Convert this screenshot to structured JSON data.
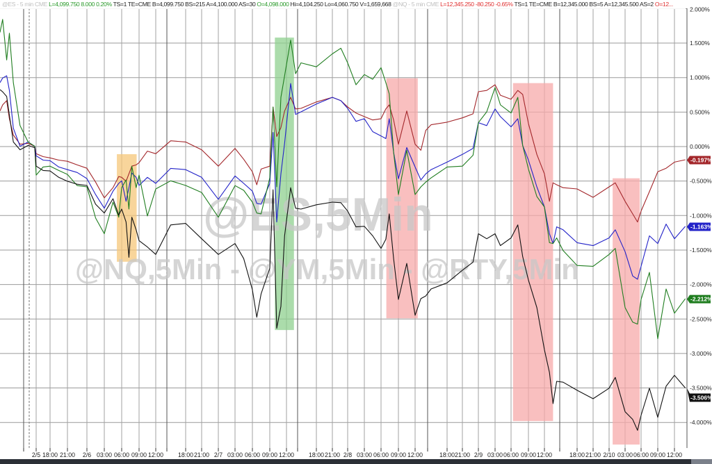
{
  "header": {
    "segments": [
      {
        "text": "@ES - 5 min  CME  ",
        "color": "#c0c0c0"
      },
      {
        "text": "L=4,099.750  8.000   0.20%  ",
        "color": "#2a9a2a"
      },
      {
        "text": "TS=1   TE=CME  B=4,099.750  BS=215  A=4,100.000  AS=30   ",
        "color": "#222222"
      },
      {
        "text": "O=4,098.000  ",
        "color": "#2a9a2a"
      },
      {
        "text": "Hi=4,104.250  Lo=4,060.750  V=1,659,668  ",
        "color": "#222222"
      },
      {
        "text": "@NQ - 5 min  CME  ",
        "color": "#c0c0c0"
      },
      {
        "text": "L=12,345.250  -80.250   -0.65%  ",
        "color": "#e03030"
      },
      {
        "text": "TS=1   TE=CME  B=12,345.000  BS=5   A=12,345.500  AS=2   ",
        "color": "#222222"
      },
      {
        "text": "O=12...",
        "color": "#e03030"
      }
    ]
  },
  "watermark": {
    "line1": "@ES,5Min",
    "line2": "@NQ,5Min - @YM,5Min - @RTY,5Min"
  },
  "chart_data": {
    "type": "line",
    "title": "",
    "xlabel": "",
    "ylabel": "",
    "y_unit": "%",
    "ylim": [
      -4.4,
      2.0
    ],
    "grid": true,
    "y_axis_side": "right",
    "y_ticks": [
      "2.000%",
      "1.500%",
      "1.000%",
      "0.500%",
      "0.000%",
      "-0.500%",
      "-1.000%",
      "-1.500%",
      "-2.000%",
      "-2.500%",
      "-3.000%",
      "-3.500%",
      "-4.000%"
    ],
    "x_ticks": [
      "2/5",
      "18:00",
      "21:00",
      "2/6",
      "03:00",
      "06:00",
      "09:00",
      "12:00",
      "18:00",
      "21:00",
      "2/7",
      "03:00",
      "06:00",
      "09:00",
      "12:00",
      "18:00",
      "21:00",
      "2/8",
      "03:00",
      "06:00",
      "09:00",
      "12:00",
      "18:00",
      "21:00",
      "2/9",
      "03:00",
      "06:00",
      "09:00",
      "12:00",
      "18:00",
      "21:00",
      "2/10",
      "03:00",
      "06:00",
      "09:00",
      "12:00"
    ],
    "x": [
      "2/3 09:30",
      "2/3 10:00",
      "2/3 10:45",
      "2/3 11:15",
      "2/3 12:00",
      "2/3 13:15",
      "2/3 14:45",
      "2/3 16:00",
      "2/5 16:00",
      "2/5 17:00",
      "2/5 18:00",
      "2/5 19:30",
      "2/5 21:00",
      "2/5 22:30",
      "2/6 00:00",
      "2/6 01:30",
      "2/6 03:00",
      "2/6 04:30",
      "2/6 05:30",
      "2/6 06:00",
      "2/6 06:45",
      "2/6 07:15",
      "2/6 07:45",
      "2/6 08:30",
      "2/6 09:00",
      "2/6 10:30",
      "2/6 12:00",
      "2/6 15:00",
      "2/6 18:00",
      "2/6 21:00",
      "2/7 00:00",
      "2/7 03:00",
      "2/7 04:30",
      "2/7 06:00",
      "2/7 06:45",
      "2/7 07:30",
      "2/7 09:00",
      "2/7 09:35",
      "2/7 10:15",
      "2/7 11:00",
      "2/7 11:40",
      "2/7 12:50",
      "2/7 13:50",
      "2/7 14:55",
      "2/7 18:00",
      "2/7 21:00",
      "2/7 22:40",
      "2/8 00:00",
      "2/8 01:30",
      "2/8 03:00",
      "2/8 04:30",
      "2/8 06:00",
      "2/8 06:50",
      "2/8 07:25",
      "2/8 08:10",
      "2/8 09:00",
      "2/8 10:30",
      "2/8 12:00",
      "2/8 13:05",
      "2/8 14:00",
      "2/8 15:00",
      "2/8 18:00",
      "2/8 21:00",
      "2/8 23:00",
      "2/9 00:00",
      "2/9 01:30",
      "2/9 03:00",
      "2/9 04:00",
      "2/9 06:00",
      "2/9 07:10",
      "2/9 08:00",
      "2/9 09:00",
      "2/9 10:35",
      "2/9 12:00",
      "2/9 12:55",
      "2/9 13:35",
      "2/9 14:15",
      "2/9 15:25",
      "2/9 18:00",
      "2/9 21:00",
      "2/10 00:00",
      "2/10 01:10",
      "2/10 03:00",
      "2/10 04:25",
      "2/10 05:20",
      "2/10 06:00",
      "2/10 07:30",
      "2/10 09:00",
      "2/10 10:30",
      "2/10 12:00",
      "2/10 13:50"
    ],
    "series": [
      {
        "color": "#a3262a",
        "last_label": "-0.197%",
        "values": [
          0.51,
          0.61,
          0.66,
          0.41,
          0.16,
          0.04,
          0.04,
          0.01,
          -0.11,
          -0.14,
          -0.17,
          -0.19,
          -0.22,
          -0.26,
          -0.32,
          -0.51,
          -0.75,
          -0.59,
          -0.44,
          -0.44,
          -0.51,
          -0.39,
          -0.29,
          -0.26,
          -0.24,
          -0.06,
          -0.11,
          0.09,
          0.06,
          -0.04,
          -0.29,
          -0.02,
          -0.19,
          -0.36,
          -0.56,
          -0.32,
          -0.29,
          0.58,
          0.14,
          0.28,
          0.51,
          0.72,
          0.54,
          0.56,
          0.64,
          0.72,
          0.66,
          0.58,
          0.48,
          0.44,
          0.38,
          0.41,
          0.54,
          0.61,
          0.38,
          0.04,
          0.51,
          0.04,
          -0.06,
          0.24,
          0.31,
          0.36,
          0.41,
          0.48,
          0.79,
          0.82,
          0.89,
          0.75,
          0.68,
          0.82,
          0.75,
          0.34,
          -0.12,
          -0.39,
          -0.8,
          -0.52,
          -0.56,
          -0.59,
          -0.62,
          -0.73,
          -0.59,
          -0.52,
          -0.8,
          -0.97,
          -1.1,
          -0.93,
          -0.66,
          -0.36,
          -0.32,
          -0.22,
          -0.197
        ]
      },
      {
        "color": "#2222c8",
        "last_label": "-1.163%",
        "values": [
          0.92,
          1.0,
          1.02,
          0.82,
          0.26,
          0.01,
          0.06,
          0.01,
          -0.14,
          -0.19,
          -0.21,
          -0.29,
          -0.34,
          -0.37,
          -0.47,
          -0.69,
          -0.9,
          -0.64,
          -0.54,
          -0.49,
          -0.8,
          -0.59,
          -0.39,
          -0.44,
          -0.57,
          -0.44,
          -0.54,
          -0.31,
          -0.34,
          -0.44,
          -0.77,
          -0.42,
          -0.54,
          -0.64,
          -0.83,
          -0.83,
          -0.54,
          0.21,
          -1.1,
          -0.39,
          0.04,
          0.92,
          0.46,
          0.51,
          0.61,
          0.72,
          0.66,
          0.56,
          0.36,
          0.41,
          0.21,
          0.16,
          0.11,
          0.41,
          -0.09,
          -0.46,
          -0.02,
          -0.29,
          -0.49,
          -0.39,
          -0.34,
          -0.22,
          -0.12,
          -0.02,
          0.34,
          0.31,
          0.54,
          0.44,
          0.28,
          0.41,
          0.01,
          -0.19,
          -0.59,
          -0.87,
          -1.27,
          -1.4,
          -1.17,
          -1.2,
          -1.4,
          -1.43,
          -1.33,
          -1.2,
          -1.53,
          -1.87,
          -1.93,
          -1.73,
          -1.3,
          -1.4,
          -1.13,
          -1.33,
          -1.163
        ]
      },
      {
        "color": "#1f7d1f",
        "last_label": "-2.212%",
        "values": [
          1.65,
          1.85,
          1.25,
          1.65,
          0.92,
          0.31,
          0.06,
          0.01,
          -0.42,
          -0.29,
          -0.29,
          -0.34,
          -0.41,
          -0.56,
          -0.59,
          -1.03,
          -1.27,
          -0.8,
          -1.03,
          -0.59,
          -0.49,
          -0.9,
          -0.29,
          -0.59,
          -0.42,
          -1.0,
          -0.62,
          -0.49,
          -0.57,
          -0.66,
          -1.03,
          -0.56,
          -0.64,
          -0.8,
          -0.97,
          -0.97,
          -0.46,
          0.58,
          -0.59,
          0.72,
          1.02,
          1.55,
          1.05,
          1.22,
          1.15,
          1.35,
          1.42,
          1.22,
          0.89,
          1.05,
          0.97,
          1.15,
          0.92,
          0.77,
          -0.09,
          -0.69,
          -0.06,
          -0.69,
          -0.59,
          -0.51,
          -0.46,
          -0.29,
          -0.29,
          -0.12,
          0.34,
          0.51,
          0.85,
          0.61,
          0.48,
          0.72,
          0.01,
          -0.32,
          -0.73,
          -0.87,
          -1.4,
          -1.4,
          -1.33,
          -1.5,
          -1.73,
          -1.73,
          -1.57,
          -1.47,
          -2.34,
          -2.54,
          -2.58,
          -2.21,
          -1.83,
          -2.78,
          -2.07,
          -2.41,
          -2.212
        ]
      },
      {
        "color": "#111111",
        "last_label": "-3.506%",
        "values": [
          0.82,
          0.8,
          0.72,
          0.46,
          0.06,
          -0.04,
          0.01,
          -0.01,
          -0.29,
          -0.34,
          -0.36,
          -0.44,
          -0.51,
          -0.54,
          -0.57,
          -0.83,
          -0.97,
          -0.75,
          -1.0,
          -0.9,
          -1.1,
          -1.6,
          -1.03,
          -1.2,
          -1.37,
          -1.45,
          -1.57,
          -1.13,
          -1.12,
          -1.33,
          -1.57,
          -1.4,
          -1.63,
          -2.07,
          -2.48,
          -2.13,
          -1.77,
          -0.62,
          -2.64,
          -2.31,
          -1.3,
          -0.59,
          -0.9,
          -0.9,
          -0.85,
          -0.8,
          -0.82,
          -0.93,
          -1.17,
          -1.15,
          -1.3,
          -1.47,
          -1.35,
          -0.97,
          -1.63,
          -2.21,
          -1.7,
          -2.44,
          -2.21,
          -2.16,
          -2.07,
          -1.97,
          -1.8,
          -1.67,
          -1.27,
          -1.33,
          -1.27,
          -1.43,
          -1.33,
          -1.13,
          -1.6,
          -1.93,
          -2.34,
          -2.94,
          -3.28,
          -3.72,
          -3.41,
          -3.41,
          -3.54,
          -3.65,
          -3.51,
          -3.34,
          -3.85,
          -3.95,
          -4.12,
          -3.89,
          -3.51,
          -3.92,
          -3.48,
          -3.31,
          -3.506
        ]
      }
    ],
    "highlights": [
      {
        "color": "#f5c77a",
        "x_start": "2/6 05:10",
        "x_end": "2/6 08:35",
        "y_top": -0.11,
        "y_bottom": -1.67
      },
      {
        "color": "#8fd08f",
        "x_start": "2/7 09:55",
        "x_end": "2/7 13:30",
        "y_top": 1.58,
        "y_bottom": -2.66
      },
      {
        "color": "#f7a9a9",
        "x_start": "2/8 06:55",
        "x_end": "2/8 12:30",
        "y_top": 0.99,
        "y_bottom": -2.49
      },
      {
        "color": "#f7a9a9",
        "x_start": "2/9 06:20",
        "x_end": "2/9 13:35",
        "y_top": 0.92,
        "y_bottom": -3.98
      },
      {
        "color": "#f7a9a9",
        "x_start": "2/10 00:40",
        "x_end": "2/10 05:45",
        "y_top": -0.46,
        "y_bottom": -4.32
      }
    ]
  }
}
